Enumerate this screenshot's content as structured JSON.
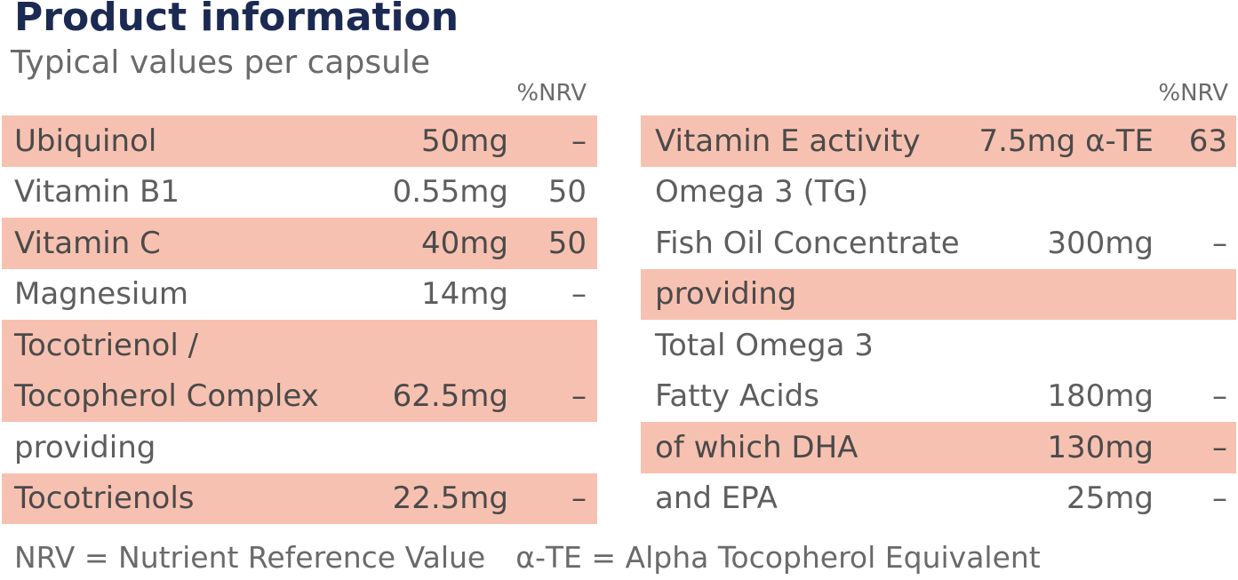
{
  "header": {
    "title": "Product information",
    "subtitle": "Typical values per capsule",
    "nrv_label": "%NRV"
  },
  "left_table": {
    "rows": [
      {
        "name": "Ubiquinol",
        "amount": "50mg",
        "nrv": "–"
      },
      {
        "name": "Vitamin B1",
        "amount": "0.55mg",
        "nrv": "50"
      },
      {
        "name": "Vitamin C",
        "amount": "40mg",
        "nrv": "50"
      },
      {
        "name": "Magnesium",
        "amount": "14mg",
        "nrv": "–"
      },
      {
        "name": "Tocotrienol /",
        "amount": "",
        "nrv": ""
      },
      {
        "name": "Tocopherol Complex",
        "amount": "62.5mg",
        "nrv": "–"
      },
      {
        "name": "providing",
        "amount": "",
        "nrv": ""
      },
      {
        "name": "Tocotrienols",
        "amount": "22.5mg",
        "nrv": "–"
      }
    ]
  },
  "right_table": {
    "rows": [
      {
        "name": "Vitamin E activity",
        "amount": "7.5mg α-TE",
        "nrv": "63"
      },
      {
        "name": "Omega 3 (TG)",
        "amount": "",
        "nrv": ""
      },
      {
        "name": "Fish Oil Concentrate",
        "amount": "300mg",
        "nrv": "–"
      },
      {
        "name": "providing",
        "amount": "",
        "nrv": ""
      },
      {
        "name": "Total Omega 3",
        "amount": "",
        "nrv": ""
      },
      {
        "name": "Fatty Acids",
        "amount": "180mg",
        "nrv": "–"
      },
      {
        "name": "of which DHA",
        "amount": "130mg",
        "nrv": "–"
      },
      {
        "name": "and EPA",
        "amount": "25mg",
        "nrv": "–"
      }
    ]
  },
  "footer": {
    "nrv_definition": "NRV = Nutrient Reference Value",
    "ate_definition": "α-TE = Alpha Tocopherol Equivalent"
  },
  "colors": {
    "title": "#1b2a52",
    "row_shade": "#f7c1b1",
    "text": "#5e5e5e"
  }
}
